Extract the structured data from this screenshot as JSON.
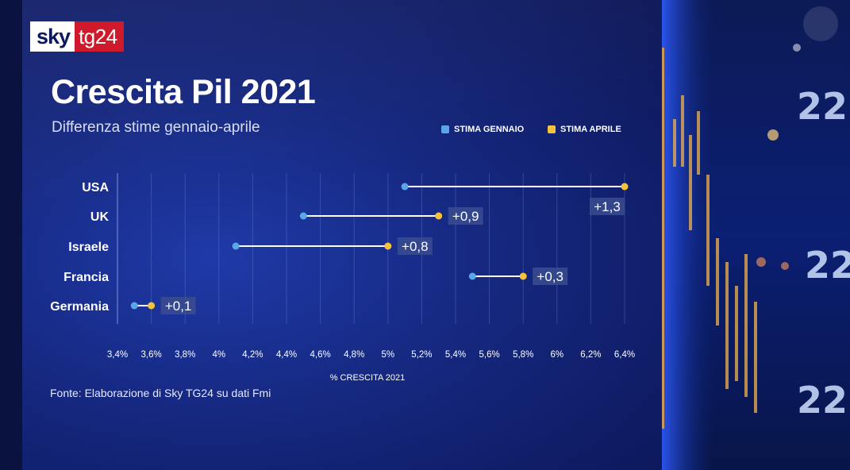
{
  "brand": {
    "sky": "sky",
    "tg": "tg24"
  },
  "header": {
    "title": "Crescita Pil 2021",
    "subtitle": "Differenza stime gennaio-aprile"
  },
  "legend": {
    "gennaio": "STIMA GENNAIO",
    "aprile": "STIMA APRILE"
  },
  "source": "Fonte:  Elaborazione di Sky TG24 su dati Fmi",
  "colors": {
    "gennaio": "#5aa7e8",
    "aprile": "#f5c33b",
    "line": "#ffffff",
    "label_bg": "#3a4c8f"
  },
  "chart_data": {
    "type": "dumbbell",
    "xlabel": "% CRESCITA 2021",
    "xlim": [
      3.4,
      6.4
    ],
    "xtick_values": [
      3.4,
      3.6,
      3.8,
      4.0,
      4.2,
      4.4,
      4.6,
      4.8,
      5.0,
      5.2,
      5.4,
      5.6,
      5.8,
      6.0,
      6.2,
      6.4
    ],
    "xtick_labels": [
      "3,4%",
      "3,6%",
      "3,8%",
      "4%",
      "4,2%",
      "4,4%",
      "4,6%",
      "4,8%",
      "5%",
      "5,2%",
      "5,4%",
      "5,6%",
      "5,8%",
      "6%",
      "6,2%",
      "6,4%"
    ],
    "grid": true,
    "series": [
      {
        "name": "STIMA GENNAIO",
        "values": [
          5.1,
          4.5,
          4.1,
          5.5,
          3.5
        ]
      },
      {
        "name": "STIMA APRILE",
        "values": [
          6.4,
          5.3,
          5.0,
          5.8,
          3.6
        ]
      }
    ],
    "categories": [
      "USA",
      "UK",
      "Israele",
      "Francia",
      "Germania"
    ],
    "differences": [
      "+1,3",
      "+0,9",
      "+0,8",
      "+0,3",
      "+0,1"
    ]
  }
}
